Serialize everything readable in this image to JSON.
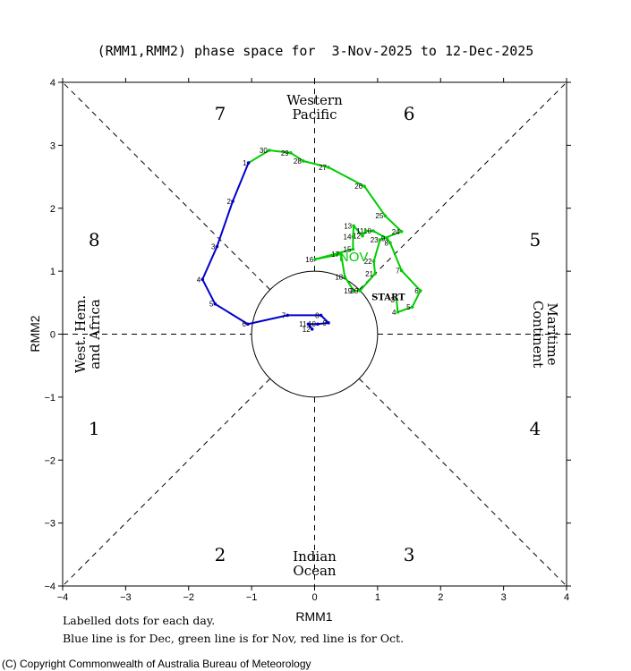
{
  "title": "(RMM1,RMM2) phase space for  3-Nov-2025 to 12-Dec-2025",
  "footnote_1": "Labelled dots for each day.",
  "footnote_2": "Blue line is for Dec, green line is for Nov, red line is for Oct.",
  "copyright": "(C) Copyright Commonwealth of Australia Bureau of Meteorology",
  "chart_data": {
    "type": "line",
    "title": "(RMM1,RMM2) phase space for  3-Nov-2025 to 12-Dec-2025",
    "xlabel": "RMM1",
    "ylabel": "RMM2",
    "xlim": [
      -4,
      4
    ],
    "ylim": [
      -4,
      4
    ],
    "xticks": [
      -4,
      -3,
      -2,
      -1,
      0,
      1,
      2,
      3,
      4
    ],
    "yticks": [
      -4,
      -3,
      -2,
      -1,
      0,
      1,
      2,
      3,
      4
    ],
    "phase_labels": [
      {
        "text": "1",
        "x": -3.5,
        "y": -1.5
      },
      {
        "text": "2",
        "x": -1.5,
        "y": -3.5
      },
      {
        "text": "3",
        "x": 1.5,
        "y": -3.5
      },
      {
        "text": "4",
        "x": 3.5,
        "y": -1.5
      },
      {
        "text": "5",
        "x": 3.5,
        "y": 1.5
      },
      {
        "text": "6",
        "x": 1.5,
        "y": 3.5
      },
      {
        "text": "7",
        "x": -1.5,
        "y": 3.5
      },
      {
        "text": "8",
        "x": -3.5,
        "y": 1.5
      }
    ],
    "regions": [
      {
        "line1": "Western",
        "line2": "Pacific",
        "side": "top"
      },
      {
        "line1": "Indian",
        "line2": "Ocean",
        "side": "bottom"
      },
      {
        "line1": "West. Hem.",
        "line2": "and Africa",
        "side": "left"
      },
      {
        "line1": "Maritime",
        "line2": "Continent",
        "side": "right"
      }
    ],
    "start_label": {
      "text": "START",
      "x": 1.17,
      "y": 0.6
    },
    "month_label": {
      "text": "NOV",
      "x": 0.62,
      "y": 1.24
    },
    "series": [
      {
        "name": "Nov",
        "color": "#00cc00",
        "labels": [
          "3",
          "4",
          "5",
          "6",
          "7",
          "8",
          "9",
          "10",
          "11",
          "12",
          "13",
          "14",
          "15",
          "16",
          "17",
          "18",
          "19",
          "20",
          "21",
          "22",
          "23",
          "24",
          "25",
          "26",
          "27",
          "28",
          "29",
          "30"
        ],
        "x": [
          1.3,
          1.32,
          1.55,
          1.68,
          1.38,
          1.2,
          1.15,
          0.93,
          0.81,
          0.76,
          0.62,
          0.61,
          0.61,
          0.01,
          0.42,
          0.48,
          0.62,
          0.72,
          0.96,
          0.94,
          1.04,
          1.38,
          1.12,
          0.79,
          0.22,
          -0.18,
          -0.38,
          -0.72
        ],
        "y": [
          0.55,
          0.35,
          0.43,
          0.69,
          1.01,
          1.45,
          1.52,
          1.64,
          1.64,
          1.56,
          1.72,
          1.55,
          1.35,
          1.19,
          1.27,
          0.91,
          0.69,
          0.69,
          0.96,
          1.16,
          1.5,
          1.63,
          1.88,
          2.35,
          2.65,
          2.75,
          2.88,
          2.92
        ]
      },
      {
        "name": "Dec",
        "color": "#0000cc",
        "labels": [
          "1",
          "2",
          "3",
          "4",
          "5",
          "6",
          "7",
          "8",
          "9",
          "10",
          "11",
          "12"
        ],
        "x": [
          -1.05,
          -1.3,
          -1.55,
          -1.78,
          -1.58,
          -1.06,
          -0.43,
          0.1,
          0.22,
          0.05,
          -0.1,
          -0.04
        ],
        "y": [
          2.72,
          2.11,
          1.39,
          0.87,
          0.48,
          0.16,
          0.3,
          0.3,
          0.18,
          0.16,
          0.16,
          0.08
        ]
      }
    ],
    "connections": [
      {
        "from_series": "Nov",
        "to_series": "Dec",
        "color": "#00cc00",
        "x": [
          -0.72,
          -1.05
        ],
        "y": [
          2.92,
          2.72
        ]
      }
    ]
  }
}
